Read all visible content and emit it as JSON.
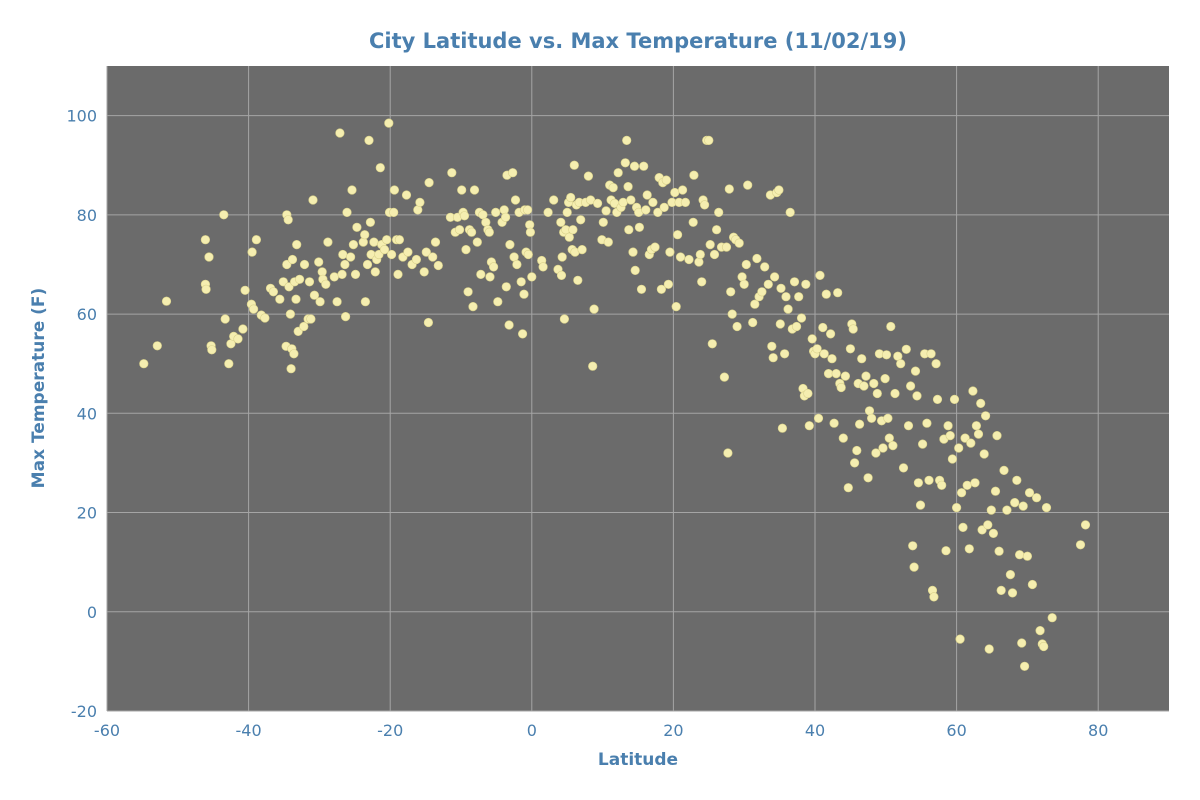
{
  "colors": {
    "plot_background": "#6b6b6b",
    "grid": "#a5a5a5",
    "text": "#4a7fae",
    "point_fill": "#f5eeb0",
    "point_stroke": "#d8d08a"
  },
  "chart_data": {
    "type": "scatter",
    "title": "City Latitude vs. Max Temperature (11/02/19)",
    "xlabel": "Latitude",
    "ylabel": "Max Temperature (F)",
    "xlim": [
      -60,
      90
    ],
    "ylim": [
      -20,
      110
    ],
    "xticks": [
      -60,
      -40,
      -20,
      0,
      20,
      40,
      60,
      80
    ],
    "yticks": [
      -20,
      0,
      20,
      40,
      60,
      80,
      100
    ],
    "grid": true,
    "points": [
      [
        -54.8,
        50
      ],
      [
        -52.9,
        53.6
      ],
      [
        -51.6,
        62.6
      ],
      [
        -46.1,
        75
      ],
      [
        -46.1,
        66
      ],
      [
        -46,
        65
      ],
      [
        -45.6,
        71.5
      ],
      [
        -45.3,
        53.6
      ],
      [
        -45.2,
        52.8
      ],
      [
        -43.5,
        80
      ],
      [
        -43.3,
        59
      ],
      [
        -42.8,
        50
      ],
      [
        -42.5,
        54
      ],
      [
        -42.1,
        55.5
      ],
      [
        -41.5,
        55
      ],
      [
        -40.8,
        57
      ],
      [
        -40.5,
        64.8
      ],
      [
        -39.6,
        62
      ],
      [
        -39.5,
        72.5
      ],
      [
        -39.3,
        61
      ],
      [
        -38.9,
        75
      ],
      [
        -38.2,
        59.8
      ],
      [
        -37.7,
        59.2
      ],
      [
        -36.9,
        65.2
      ],
      [
        -36.5,
        64.5
      ],
      [
        -35.6,
        63
      ],
      [
        -35.1,
        66.5
      ],
      [
        -34.7,
        53.5
      ],
      [
        -34.6,
        70
      ],
      [
        -34.6,
        80
      ],
      [
        -34.4,
        79
      ],
      [
        -34.3,
        65.5
      ],
      [
        -34.1,
        60
      ],
      [
        -34,
        49
      ],
      [
        -33.9,
        53
      ],
      [
        -33.8,
        71
      ],
      [
        -33.6,
        52
      ],
      [
        -33.5,
        66.5
      ],
      [
        -33.3,
        63
      ],
      [
        -33.2,
        74
      ],
      [
        -33,
        56.5
      ],
      [
        -32.8,
        67
      ],
      [
        -32.2,
        57.5
      ],
      [
        -32.1,
        70
      ],
      [
        -31.6,
        59
      ],
      [
        -31.4,
        66.5
      ],
      [
        -31.2,
        59
      ],
      [
        -30.9,
        83
      ],
      [
        -30.7,
        63.8
      ],
      [
        -30.1,
        70.5
      ],
      [
        -29.9,
        62.5
      ],
      [
        -29.6,
        68.5
      ],
      [
        -29.5,
        67
      ],
      [
        -29.1,
        66
      ],
      [
        -28.8,
        74.5
      ],
      [
        -27.9,
        67.5
      ],
      [
        -27.5,
        62.5
      ],
      [
        -27.1,
        96.5
      ],
      [
        -26.8,
        68
      ],
      [
        -26.7,
        72
      ],
      [
        -26.4,
        70
      ],
      [
        -26.3,
        59.5
      ],
      [
        -26.1,
        80.5
      ],
      [
        -25.6,
        71.5
      ],
      [
        -25.4,
        85
      ],
      [
        -25.2,
        74
      ],
      [
        -24.9,
        68
      ],
      [
        -24.7,
        77.5
      ],
      [
        -23.8,
        74.5
      ],
      [
        -23.6,
        76
      ],
      [
        -23.5,
        62.5
      ],
      [
        -23.2,
        70
      ],
      [
        -23,
        95
      ],
      [
        -22.8,
        78.5
      ],
      [
        -22.7,
        72
      ],
      [
        -22.3,
        74.5
      ],
      [
        -22.1,
        68.5
      ],
      [
        -21.9,
        71
      ],
      [
        -21.6,
        72
      ],
      [
        -21.4,
        89.5
      ],
      [
        -21.2,
        74
      ],
      [
        -20.8,
        73
      ],
      [
        -20.5,
        75
      ],
      [
        -20.2,
        98.5
      ],
      [
        -20.1,
        80.5
      ],
      [
        -19.8,
        72
      ],
      [
        -19.5,
        80.5
      ],
      [
        -19.4,
        85
      ],
      [
        -19.1,
        75
      ],
      [
        -18.9,
        68
      ],
      [
        -18.7,
        75
      ],
      [
        -18.2,
        71.5
      ],
      [
        -17.7,
        84
      ],
      [
        -17.5,
        72.5
      ],
      [
        -16.9,
        70
      ],
      [
        -16.3,
        71
      ],
      [
        -16.1,
        81
      ],
      [
        -15.8,
        82.5
      ],
      [
        -15.2,
        68.5
      ],
      [
        -14.9,
        72.5
      ],
      [
        -14.6,
        58.3
      ],
      [
        -14.5,
        86.5
      ],
      [
        -14,
        71.5
      ],
      [
        -13.6,
        74.5
      ],
      [
        -13.2,
        69.8
      ],
      [
        -11.5,
        79.5
      ],
      [
        -11.3,
        88.5
      ],
      [
        -10.8,
        76.5
      ],
      [
        -10.5,
        79.5
      ],
      [
        -10.2,
        77
      ],
      [
        -9.9,
        85
      ],
      [
        -9.7,
        80.5
      ],
      [
        -9.5,
        79.8
      ],
      [
        -9.3,
        73
      ],
      [
        -9,
        64.5
      ],
      [
        -8.8,
        77
      ],
      [
        -8.5,
        76.5
      ],
      [
        -8.3,
        61.5
      ],
      [
        -8.1,
        85
      ],
      [
        -7.7,
        74.5
      ],
      [
        -7.4,
        80.5
      ],
      [
        -7.2,
        68
      ],
      [
        -6.9,
        80
      ],
      [
        -6.5,
        78.5
      ],
      [
        -6.2,
        77
      ],
      [
        -6,
        76.5
      ],
      [
        -5.9,
        67.5
      ],
      [
        -5.7,
        70.5
      ],
      [
        -5.4,
        69.5
      ],
      [
        -5.1,
        80.5
      ],
      [
        -4.8,
        62.5
      ],
      [
        -4.2,
        78.5
      ],
      [
        -3.9,
        81
      ],
      [
        -3.7,
        79.5
      ],
      [
        -3.6,
        65.5
      ],
      [
        -3.5,
        88
      ],
      [
        -3.2,
        57.8
      ],
      [
        -3.1,
        74
      ],
      [
        -2.7,
        88.5
      ],
      [
        -2.5,
        71.5
      ],
      [
        -2.3,
        83
      ],
      [
        -2.1,
        70
      ],
      [
        -1.8,
        80.5
      ],
      [
        -1.5,
        66.5
      ],
      [
        -1.3,
        56
      ],
      [
        -1.1,
        64
      ],
      [
        -1,
        81
      ],
      [
        -0.8,
        72.5
      ],
      [
        -0.6,
        81
      ],
      [
        -0.5,
        72
      ],
      [
        -0.3,
        78
      ],
      [
        -0.2,
        76.5
      ],
      [
        0,
        67.5
      ],
      [
        1.4,
        70.8
      ],
      [
        1.6,
        69.5
      ],
      [
        2.3,
        80.5
      ],
      [
        3.1,
        83
      ],
      [
        3.7,
        69
      ],
      [
        4.1,
        78.5
      ],
      [
        4.2,
        67.8
      ],
      [
        4.3,
        71.5
      ],
      [
        4.5,
        76.5
      ],
      [
        4.6,
        59
      ],
      [
        4.8,
        77
      ],
      [
        5,
        80.5
      ],
      [
        5.2,
        82.5
      ],
      [
        5.3,
        75.5
      ],
      [
        5.5,
        83.5
      ],
      [
        5.7,
        73
      ],
      [
        5.8,
        77
      ],
      [
        6,
        90
      ],
      [
        6.1,
        72.5
      ],
      [
        6.3,
        82
      ],
      [
        6.5,
        66.8
      ],
      [
        6.7,
        82.5
      ],
      [
        6.9,
        79
      ],
      [
        7.1,
        73
      ],
      [
        7.6,
        82.5
      ],
      [
        8,
        87.8
      ],
      [
        8.3,
        83
      ],
      [
        8.6,
        49.5
      ],
      [
        8.8,
        61
      ],
      [
        9.3,
        82.3
      ],
      [
        9.9,
        75
      ],
      [
        10.1,
        78.5
      ],
      [
        10.5,
        80.8
      ],
      [
        10.8,
        74.5
      ],
      [
        11,
        86
      ],
      [
        11.2,
        83
      ],
      [
        11.5,
        85.5
      ],
      [
        11.7,
        82.3
      ],
      [
        12,
        80.5
      ],
      [
        12.2,
        88.5
      ],
      [
        12.6,
        81.5
      ],
      [
        12.9,
        82.5
      ],
      [
        13.2,
        90.5
      ],
      [
        13.4,
        95
      ],
      [
        13.6,
        85.7
      ],
      [
        13.7,
        77
      ],
      [
        14,
        83
      ],
      [
        14.3,
        72.5
      ],
      [
        14.5,
        89.8
      ],
      [
        14.6,
        68.8
      ],
      [
        14.8,
        81.5
      ],
      [
        15.1,
        80.5
      ],
      [
        15.2,
        77.5
      ],
      [
        15.5,
        65
      ],
      [
        15.8,
        89.8
      ],
      [
        16.1,
        81
      ],
      [
        16.3,
        84
      ],
      [
        16.6,
        72
      ],
      [
        16.9,
        73
      ],
      [
        17.1,
        82.5
      ],
      [
        17.4,
        73.5
      ],
      [
        17.8,
        80.5
      ],
      [
        18,
        87.5
      ],
      [
        18.3,
        65
      ],
      [
        18.5,
        86.5
      ],
      [
        18.7,
        81.5
      ],
      [
        19,
        87
      ],
      [
        19.3,
        66
      ],
      [
        19.5,
        72.5
      ],
      [
        19.8,
        82.5
      ],
      [
        20.2,
        84.5
      ],
      [
        20.4,
        61.5
      ],
      [
        20.6,
        76
      ],
      [
        20.8,
        82.5
      ],
      [
        21,
        71.5
      ],
      [
        21.3,
        85
      ],
      [
        21.7,
        82.5
      ],
      [
        22.2,
        71
      ],
      [
        22.8,
        78.5
      ],
      [
        22.9,
        88
      ],
      [
        23.6,
        70.5
      ],
      [
        23.8,
        72
      ],
      [
        24,
        66.5
      ],
      [
        24.2,
        83
      ],
      [
        24.4,
        82
      ],
      [
        24.7,
        95
      ],
      [
        25,
        95
      ],
      [
        25.2,
        74
      ],
      [
        25.5,
        54
      ],
      [
        25.8,
        72
      ],
      [
        26.1,
        77
      ],
      [
        26.4,
        80.5
      ],
      [
        26.8,
        73.5
      ],
      [
        27.2,
        47.3
      ],
      [
        27.5,
        73.5
      ],
      [
        27.7,
        32
      ],
      [
        27.9,
        85.2
      ],
      [
        28.1,
        64.5
      ],
      [
        28.3,
        60
      ],
      [
        28.5,
        75.5
      ],
      [
        28.8,
        75
      ],
      [
        29,
        57.5
      ],
      [
        29.3,
        74.3
      ],
      [
        29.7,
        67.5
      ],
      [
        30,
        66
      ],
      [
        30.3,
        70
      ],
      [
        30.5,
        86
      ],
      [
        31.2,
        58.3
      ],
      [
        31.5,
        62
      ],
      [
        31.8,
        71.2
      ],
      [
        32.1,
        63.5
      ],
      [
        32.5,
        64.5
      ],
      [
        32.9,
        69.5
      ],
      [
        33.4,
        66
      ],
      [
        33.7,
        84
      ],
      [
        33.9,
        53.5
      ],
      [
        34.1,
        51.2
      ],
      [
        34.3,
        67.5
      ],
      [
        34.6,
        84.5
      ],
      [
        34.9,
        85
      ],
      [
        35.1,
        58
      ],
      [
        35.2,
        65.2
      ],
      [
        35.4,
        37
      ],
      [
        35.7,
        52
      ],
      [
        35.9,
        63.5
      ],
      [
        36.2,
        61
      ],
      [
        36.5,
        80.5
      ],
      [
        36.8,
        57
      ],
      [
        37.1,
        66.5
      ],
      [
        37.4,
        57.5
      ],
      [
        37.7,
        63.5
      ],
      [
        38.1,
        59.2
      ],
      [
        38.3,
        45
      ],
      [
        38.5,
        43.5
      ],
      [
        38.7,
        66
      ],
      [
        39,
        44
      ],
      [
        39.2,
        37.5
      ],
      [
        39.6,
        55
      ],
      [
        39.8,
        52.5
      ],
      [
        40,
        52
      ],
      [
        40.3,
        53
      ],
      [
        40.5,
        39
      ],
      [
        40.7,
        67.8
      ],
      [
        41.1,
        57.3
      ],
      [
        41.3,
        52
      ],
      [
        41.6,
        64
      ],
      [
        41.9,
        48
      ],
      [
        42.2,
        56
      ],
      [
        42.4,
        51
      ],
      [
        42.7,
        38
      ],
      [
        43,
        48
      ],
      [
        43.2,
        64.3
      ],
      [
        43.5,
        46
      ],
      [
        43.7,
        45.2
      ],
      [
        44,
        35
      ],
      [
        44.3,
        47.5
      ],
      [
        44.7,
        25
      ],
      [
        45,
        53
      ],
      [
        45.2,
        58
      ],
      [
        45.4,
        57
      ],
      [
        45.6,
        30
      ],
      [
        45.9,
        32.5
      ],
      [
        46.1,
        46
      ],
      [
        46.3,
        37.8
      ],
      [
        46.6,
        51
      ],
      [
        46.9,
        45.5
      ],
      [
        47.2,
        47.5
      ],
      [
        47.5,
        27
      ],
      [
        47.7,
        40.5
      ],
      [
        48,
        39
      ],
      [
        48.3,
        46
      ],
      [
        48.6,
        32
      ],
      [
        48.8,
        44
      ],
      [
        49.1,
        52
      ],
      [
        49.4,
        38.5
      ],
      [
        49.6,
        33
      ],
      [
        49.9,
        47
      ],
      [
        50.1,
        51.8
      ],
      [
        50.3,
        39
      ],
      [
        50.5,
        35
      ],
      [
        50.7,
        57.5
      ],
      [
        51,
        33.5
      ],
      [
        51.3,
        44
      ],
      [
        51.7,
        51.5
      ],
      [
        52.1,
        50
      ],
      [
        52.5,
        29
      ],
      [
        52.9,
        52.9
      ],
      [
        53.2,
        37.5
      ],
      [
        53.5,
        45.5
      ],
      [
        53.8,
        13.3
      ],
      [
        54,
        9
      ],
      [
        54.2,
        48.5
      ],
      [
        54.4,
        43.5
      ],
      [
        54.6,
        26
      ],
      [
        54.9,
        21.5
      ],
      [
        55.2,
        33.8
      ],
      [
        55.5,
        52
      ],
      [
        55.8,
        38
      ],
      [
        56.1,
        26.5
      ],
      [
        56.4,
        52
      ],
      [
        56.6,
        4.3
      ],
      [
        56.8,
        3
      ],
      [
        57.1,
        50
      ],
      [
        57.3,
        42.8
      ],
      [
        57.6,
        26.5
      ],
      [
        57.9,
        25.5
      ],
      [
        58.2,
        34.8
      ],
      [
        58.5,
        12.3
      ],
      [
        58.8,
        37.5
      ],
      [
        59.1,
        35.5
      ],
      [
        59.4,
        30.8
      ],
      [
        59.7,
        42.8
      ],
      [
        60,
        21
      ],
      [
        60.3,
        33
      ],
      [
        60.5,
        -5.5
      ],
      [
        60.7,
        24
      ],
      [
        60.9,
        17
      ],
      [
        61.2,
        35
      ],
      [
        61.5,
        25.5
      ],
      [
        61.8,
        12.7
      ],
      [
        62,
        34
      ],
      [
        62.3,
        44.5
      ],
      [
        62.6,
        26
      ],
      [
        62.8,
        37.5
      ],
      [
        63.1,
        35.8
      ],
      [
        63.4,
        42
      ],
      [
        63.6,
        16.5
      ],
      [
        63.9,
        31.8
      ],
      [
        64.1,
        39.5
      ],
      [
        64.4,
        17.5
      ],
      [
        64.6,
        -7.5
      ],
      [
        64.9,
        20.5
      ],
      [
        65.2,
        15.8
      ],
      [
        65.5,
        24.3
      ],
      [
        65.7,
        35.5
      ],
      [
        66,
        12.2
      ],
      [
        66.3,
        4.3
      ],
      [
        66.7,
        28.5
      ],
      [
        67.1,
        20.5
      ],
      [
        67.6,
        7.5
      ],
      [
        67.9,
        3.8
      ],
      [
        68.2,
        22
      ],
      [
        68.5,
        26.5
      ],
      [
        68.9,
        11.5
      ],
      [
        69.2,
        -6.3
      ],
      [
        69.4,
        21.3
      ],
      [
        69.6,
        -11
      ],
      [
        70,
        11.2
      ],
      [
        70.3,
        24
      ],
      [
        70.7,
        5.5
      ],
      [
        71.3,
        23
      ],
      [
        71.8,
        -3.8
      ],
      [
        72.1,
        -6.5
      ],
      [
        72.3,
        -7
      ],
      [
        72.7,
        21
      ],
      [
        73.5,
        -1.2
      ],
      [
        77.5,
        13.5
      ],
      [
        78.2,
        17.5
      ]
    ]
  }
}
